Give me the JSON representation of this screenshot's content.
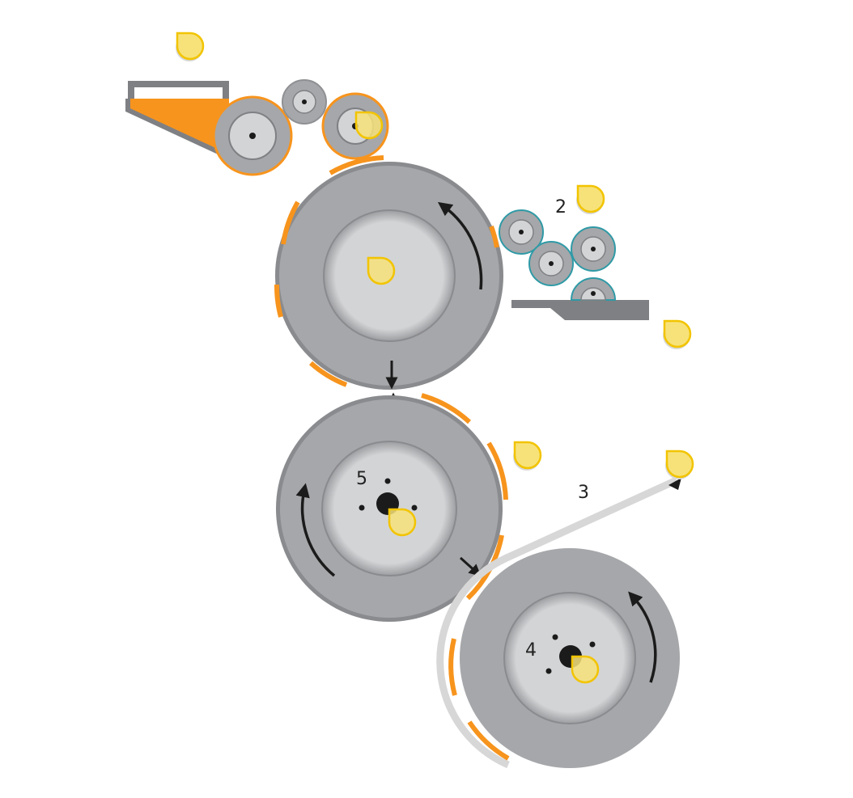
{
  "diagram": {
    "labels": {
      "station_2": "2",
      "web_3": "3",
      "drum_4": "4",
      "drum_5": "5"
    },
    "colors": {
      "roller_gray": "#a6a7aa",
      "inner_gray": "#d3d4d6",
      "outline_gray": "#7f8083",
      "orange": "#f7941d",
      "teal": "#2f9aa6",
      "arrow": "#1b1b1b",
      "hotspot_fill": "#f7e27a",
      "hotspot_ring": "#f2c400",
      "web": "#d7d7d7"
    },
    "hotspot_count": 10,
    "icons": [
      "hotspot-marker-icon",
      "rotation-arrow-icon",
      "nip-arrow-icon"
    ]
  }
}
